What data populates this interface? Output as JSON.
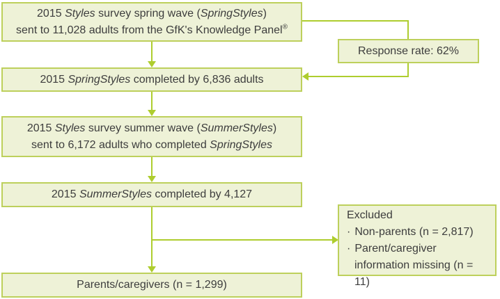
{
  "colors": {
    "accent": "#aecd2e",
    "border": "#bdd05b",
    "fill": "#eef2d7",
    "text": "#3d3d3d",
    "bg": "#ffffff"
  },
  "flowchart": {
    "box1": {
      "line1": [
        {
          "t": "2015 "
        },
        {
          "t": "Styles",
          "i": true
        },
        {
          "t": " survey spring wave ("
        },
        {
          "t": "SpringStyles",
          "i": true
        },
        {
          "t": ")"
        }
      ],
      "line2": [
        {
          "t": "sent to 11,028 adults from the GfK's Knowledge Panel"
        },
        {
          "t": "®",
          "sup": true
        }
      ]
    },
    "response": {
      "line1": [
        {
          "t": "Response rate: 62%"
        }
      ]
    },
    "box2": {
      "line1": [
        {
          "t": "2015 "
        },
        {
          "t": "SpringStyles",
          "i": true
        },
        {
          "t": " completed by 6,836 adults"
        }
      ]
    },
    "box3": {
      "line1": [
        {
          "t": "2015 "
        },
        {
          "t": "Styles",
          "i": true
        },
        {
          "t": " survey summer wave ("
        },
        {
          "t": "SummerStyles",
          "i": true
        },
        {
          "t": ")"
        }
      ],
      "line2": [
        {
          "t": "sent to 6,172 adults who completed "
        },
        {
          "t": "SpringStyles",
          "i": true
        }
      ]
    },
    "box4": {
      "line1": [
        {
          "t": "2015 "
        },
        {
          "t": "SummerStyles",
          "i": true
        },
        {
          "t": " completed by 4,127"
        }
      ]
    },
    "excluded": {
      "title": "Excluded",
      "bullet": "·",
      "items": [
        "Non-parents (n = 2,817)",
        "Parent/caregiver information missing (n = 11)"
      ]
    },
    "box5": {
      "line1": [
        {
          "t": "Parents/caregivers (n = 1,299)"
        }
      ]
    }
  }
}
